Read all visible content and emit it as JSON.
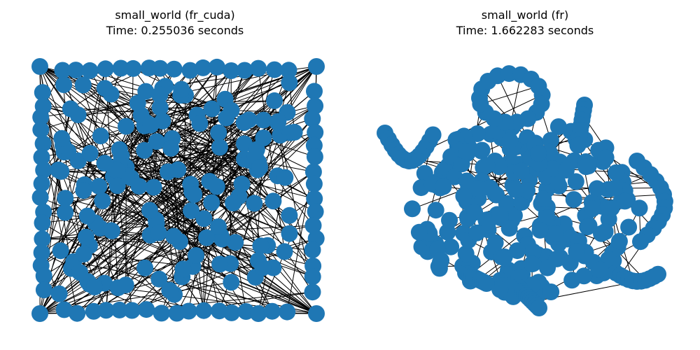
{
  "node_color": "#1f77b4",
  "edge_color": "#000000",
  "panels": [
    {
      "title_line1": "small_world (fr_cuda)",
      "title_line2": "Time: 0.255036 seconds"
    },
    {
      "title_line1": "small_world (fr)",
      "title_line2": "Time: 1.662283 seconds"
    }
  ]
}
